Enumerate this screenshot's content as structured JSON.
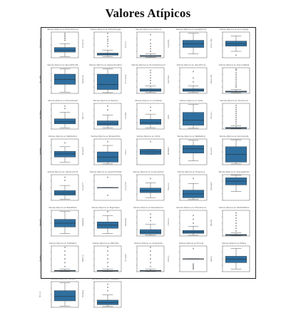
{
  "page": {
    "title": "Valores Atípicos"
  },
  "chart_data": {
    "type": "box",
    "color": "#2f6f9f",
    "outlier_color": "#222222",
    "panels": [
      {
        "title": "Valores Atípicos en Product/Count",
        "ylabel": "Product/Co",
        "q1": 0.22,
        "median": 0.3,
        "q3": 0.4,
        "whisker_low": 0.05,
        "whisker_high": 0.55,
        "outliers": [
          0.68,
          0.75,
          0.82,
          0.88,
          0.95
        ]
      },
      {
        "title": "Valores Atípicos en ExtraCharges",
        "ylabel": "ExtraChar",
        "q1": 0.1,
        "median": 0.14,
        "q3": 0.18,
        "whisker_low": 0.04,
        "whisker_high": 0.3,
        "outliers": [
          0.45,
          0.55,
          0.65,
          0.72,
          0.82,
          0.95
        ]
      },
      {
        "title": "Valores Atípicos en Amount",
        "ylabel": "Amount",
        "q1": 0.05,
        "median": 0.07,
        "q3": 0.09,
        "whisker_low": 0.02,
        "whisker_high": 0.15,
        "outliers": [
          0.25,
          0.35,
          0.45,
          0.55,
          0.7,
          0.9
        ]
      },
      {
        "title": "Valores Atípicos en LoyaltyPoints",
        "ylabel": "LoyaltyPo",
        "q1": 0.4,
        "median": 0.55,
        "q3": 0.68,
        "whisker_low": 0.15,
        "whisker_high": 0.95,
        "outliers": []
      },
      {
        "title": "Valores Atípicos en AccountAge",
        "ylabel": "AccountAg",
        "q1": 0.45,
        "median": 0.55,
        "q3": 0.65,
        "whisker_low": 0.25,
        "whisker_high": 0.85,
        "outliers": [
          0.1
        ]
      },
      {
        "title": "Valores Atípicos en TenureMonths",
        "ylabel": "TenureMo",
        "q1": 0.35,
        "median": 0.55,
        "q3": 0.75,
        "whisker_low": 0.05,
        "whisker_high": 0.95,
        "outliers": []
      },
      {
        "title": "Valores Atípicos en SessionDuration",
        "ylabel": "SessionDu",
        "q1": 0.15,
        "median": 0.35,
        "q3": 0.75,
        "whisker_low": 0.03,
        "whisker_high": 0.95,
        "outliers": []
      },
      {
        "title": "Valores Atípicos en PurchaseAmount",
        "ylabel": "PurchaseA",
        "q1": 0.08,
        "median": 0.12,
        "q3": 0.18,
        "whisker_low": 0.03,
        "whisker_high": 0.3,
        "outliers": [
          0.4,
          0.5,
          0.6,
          0.7,
          0.8,
          0.9
        ]
      },
      {
        "title": "Valores Atípicos en SpendScore",
        "ylabel": "SpendSco",
        "q1": 0.08,
        "median": 0.12,
        "q3": 0.18,
        "whisker_low": 0.03,
        "whisker_high": 0.3,
        "outliers": [
          0.45,
          0.6,
          0.85
        ]
      },
      {
        "title": "Valores Atípicos en DiscountRate",
        "ylabel": "DiscountR",
        "q1": 0.05,
        "median": 0.07,
        "q3": 0.09,
        "whisker_low": 0.02,
        "whisker_high": 0.15,
        "outliers": [
          0.25,
          0.32,
          0.4,
          0.48,
          0.56,
          0.64,
          0.72,
          0.8,
          0.9,
          0.95
        ]
      },
      {
        "title": "Valores Atípicos en ItemsViewed",
        "ylabel": "ItemsView",
        "q1": 0.2,
        "median": 0.28,
        "q3": 0.4,
        "whisker_low": 0.05,
        "whisker_high": 0.65,
        "outliers": [
          0.8,
          0.9
        ]
      },
      {
        "title": "Valores Atípicos en Returns",
        "ylabel": "Returns",
        "q1": 0.15,
        "median": 0.22,
        "q3": 0.32,
        "whisker_low": 0.05,
        "whisker_high": 0.55,
        "outliers": [
          0.75,
          0.9
        ]
      },
      {
        "title": "Valores Atípicos en CartValue",
        "ylabel": "CartValu",
        "q1": 0.18,
        "median": 0.25,
        "q3": 0.38,
        "whisker_low": 0.05,
        "whisker_high": 0.58,
        "outliers": [
          0.72,
          0.85
        ]
      },
      {
        "title": "Valores Atípicos en Visits",
        "ylabel": "Visits",
        "q1": 0.15,
        "median": 0.35,
        "q3": 0.65,
        "whisker_low": 0.03,
        "whisker_high": 0.95,
        "outliers": []
      },
      {
        "title": "Valores Atípicos en ClickCount",
        "ylabel": "ClickCou",
        "q1": 0.02,
        "median": 0.04,
        "q3": 0.06,
        "whisker_low": 0.01,
        "whisker_high": 0.12,
        "outliers": [
          0.2,
          0.28,
          0.36,
          0.44,
          0.52,
          0.6,
          0.68,
          0.76,
          0.84,
          0.92
        ]
      },
      {
        "title": "Valores Atípicos en Satisfaction",
        "ylabel": "Satisfact",
        "q1": 0.3,
        "median": 0.42,
        "q3": 0.52,
        "whisker_low": 0.1,
        "whisker_high": 0.7,
        "outliers": [
          0.85
        ]
      },
      {
        "title": "Valores Atípicos en BrowseTime",
        "ylabel": "BrowseTi",
        "q1": 0.1,
        "median": 0.3,
        "q3": 0.5,
        "whisker_low": 0.03,
        "whisker_high": 0.75,
        "outliers": [
          0.9
        ]
      },
      {
        "title": "Valores Atípicos en Clicks",
        "ylabel": "Clicks",
        "q1": 0.4,
        "median": 0.5,
        "q3": 0.6,
        "whisker_low": 0.4,
        "whisker_high": 0.6,
        "outliers": [
          0.9
        ]
      },
      {
        "title": "Valores Atípicos en WebRating",
        "ylabel": "WebRatin",
        "q1": 0.45,
        "median": 0.62,
        "q3": 0.75,
        "whisker_low": 0.15,
        "whisker_high": 0.95,
        "outliers": []
      },
      {
        "title": "Valores Atípicos en ServiceCalls",
        "ylabel": "ServiceC",
        "q1": 0.1,
        "median": 0.4,
        "q3": 0.7,
        "whisker_low": 0.03,
        "whisker_high": 0.97,
        "outliers": []
      },
      {
        "title": "Valores Atípicos en SessionCount",
        "ylabel": "SessionC",
        "q1": 0.2,
        "median": 0.28,
        "q3": 0.38,
        "whisker_low": 0.05,
        "whisker_high": 0.58,
        "outliers": [
          0.78,
          0.9
        ]
      },
      {
        "title": "Valores Atípicos en SupportTickets",
        "ylabel": "SupportT",
        "q1": 0.5,
        "median": 0.5,
        "q3": 0.5,
        "whisker_low": 0.5,
        "whisker_high": 0.5,
        "outliers": [
          0.2,
          0.9
        ]
      },
      {
        "title": "Valores Atípicos en CouponsUsed",
        "ylabel": "CouponsU",
        "q1": 0.3,
        "median": 0.38,
        "q3": 0.48,
        "whisker_low": 0.1,
        "whisker_high": 0.68,
        "outliers": [
          0.85
        ]
      },
      {
        "title": "Valores Atípicos en Frequency",
        "ylabel": "Frequenc",
        "q1": 0.1,
        "median": 0.25,
        "q3": 0.4,
        "whisker_low": 0.03,
        "whisker_high": 0.65,
        "outliers": [
          0.85
        ]
      },
      {
        "title": "Valores Atípicos en AverageOrder",
        "ylabel": "AverageO",
        "q1": 0.6,
        "median": 0.75,
        "q3": 0.88,
        "whisker_low": 0.35,
        "whisker_high": 0.98,
        "outliers": []
      },
      {
        "title": "Valores Atípicos en BasketSize",
        "ylabel": "BasketSi",
        "q1": 0.35,
        "median": 0.5,
        "q3": 0.65,
        "whisker_low": 0.1,
        "whisker_high": 0.95,
        "outliers": []
      },
      {
        "title": "Valores Atípicos en PageViews",
        "ylabel": "PageView",
        "q1": 0.3,
        "median": 0.42,
        "q3": 0.55,
        "whisker_low": 0.1,
        "whisker_high": 0.8,
        "outliers": [
          0.95
        ]
      },
      {
        "title": "Valores Atípicos en ReviewScore",
        "ylabel": "ReviewSc",
        "q1": 0.08,
        "median": 0.15,
        "q3": 0.25,
        "whisker_low": 0.03,
        "whisker_high": 0.45,
        "outliers": [
          0.6,
          0.72,
          0.85
        ]
      },
      {
        "title": "Valores Atípicos en OrdersCount",
        "ylabel": "OrdersCo",
        "q1": 0.1,
        "median": 0.15,
        "q3": 0.22,
        "whisker_low": 0.03,
        "whisker_high": 0.38,
        "outliers": [
          0.5,
          0.65,
          0.8
        ]
      },
      {
        "title": "Valores Atípicos en WishlistItems",
        "ylabel": "Wishlist",
        "q1": 0.02,
        "median": 0.04,
        "q3": 0.06,
        "whisker_low": 0.01,
        "whisker_high": 0.12,
        "outliers": [
          0.2,
          0.3,
          0.4,
          0.5,
          0.6,
          0.7,
          0.8,
          0.9
        ]
      },
      {
        "title": "Valores Atípicos en TotalItems",
        "ylabel": "TotalIte",
        "q1": 0.02,
        "median": 0.03,
        "q3": 0.05,
        "whisker_low": 0.01,
        "whisker_high": 0.1,
        "outliers": [
          0.2,
          0.35,
          0.5,
          0.65,
          0.8,
          0.95
        ]
      },
      {
        "title": "Valores Atípicos en Referrals",
        "ylabel": "Referral",
        "q1": 0.02,
        "median": 0.03,
        "q3": 0.05,
        "whisker_low": 0.01,
        "whisker_high": 0.1,
        "outliers": [
          0.2,
          0.35,
          0.5,
          0.65,
          0.8,
          0.95
        ]
      },
      {
        "title": "Valores Atípicos en Complaints",
        "ylabel": "Complain",
        "q1": 0.02,
        "median": 0.03,
        "q3": 0.05,
        "whisker_low": 0.01,
        "whisker_high": 0.1,
        "outliers": [
          0.2,
          0.35,
          0.5,
          0.65,
          0.8,
          0.95
        ]
      },
      {
        "title": "Valores Atípicos en Priority",
        "ylabel": "Priority",
        "q1": 0.5,
        "median": 0.5,
        "q3": 0.5,
        "whisker_low": 0.5,
        "whisker_high": 0.5,
        "outliers": [
          0.1,
          0.15,
          0.2,
          0.25,
          0.3,
          0.9
        ]
      },
      {
        "title": "Valores Atípicos en Rating",
        "ylabel": "Rating",
        "q1": 0.35,
        "median": 0.48,
        "q3": 0.6,
        "whisker_low": 0.1,
        "whisker_high": 0.9,
        "outliers": []
      },
      {
        "title": "Valores Atípicos en Tenure",
        "ylabel": "Tenure",
        "q1": 0.25,
        "median": 0.42,
        "q3": 0.65,
        "whisker_low": 0.05,
        "whisker_high": 0.95,
        "outliers": []
      },
      {
        "title": "Valores Atípicos en TotalSpent",
        "ylabel": "TotalSpe",
        "q1": 0.1,
        "median": 0.18,
        "q3": 0.28,
        "whisker_low": 0.03,
        "whisker_high": 0.48,
        "outliers": [
          0.65,
          0.78,
          0.9
        ]
      }
    ]
  }
}
